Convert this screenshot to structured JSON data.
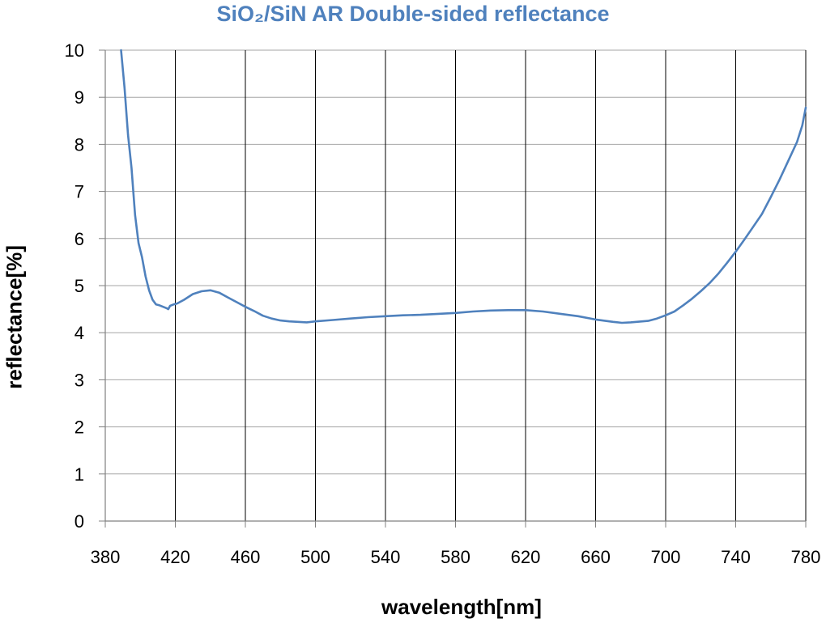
{
  "chart_data": {
    "type": "line",
    "title": "SiO₂/SiN AR Double-sided reflectance",
    "xlabel": "wavelength[nm]",
    "ylabel": "reflectance[%]",
    "xlim": [
      380,
      780
    ],
    "ylim": [
      0,
      10
    ],
    "xticks": [
      380,
      420,
      460,
      500,
      540,
      580,
      620,
      660,
      700,
      740,
      780
    ],
    "yticks": [
      0,
      1,
      2,
      3,
      4,
      5,
      6,
      7,
      8,
      9,
      10
    ],
    "grid": true,
    "legend": "none",
    "series": [
      {
        "color": "#4f81bd",
        "x": [
          389,
          391,
          393,
          395,
          397,
          399,
          401,
          403,
          405,
          407,
          409,
          411,
          413,
          415,
          416,
          417,
          419,
          421,
          425,
          430,
          435,
          440,
          445,
          450,
          455,
          460,
          465,
          470,
          475,
          480,
          485,
          490,
          495,
          500,
          510,
          520,
          530,
          540,
          550,
          560,
          570,
          580,
          590,
          600,
          610,
          620,
          630,
          640,
          650,
          660,
          670,
          675,
          680,
          690,
          695,
          700,
          705,
          710,
          715,
          720,
          725,
          730,
          735,
          740,
          745,
          750,
          755,
          760,
          765,
          770,
          775,
          778,
          780
        ],
        "y": [
          10.0,
          9.2,
          8.2,
          7.5,
          6.5,
          5.9,
          5.6,
          5.2,
          4.9,
          4.7,
          4.6,
          4.58,
          4.55,
          4.52,
          4.5,
          4.57,
          4.6,
          4.62,
          4.7,
          4.82,
          4.88,
          4.9,
          4.85,
          4.75,
          4.65,
          4.55,
          4.46,
          4.36,
          4.3,
          4.26,
          4.24,
          4.23,
          4.22,
          4.24,
          4.27,
          4.3,
          4.33,
          4.35,
          4.37,
          4.38,
          4.4,
          4.42,
          4.45,
          4.47,
          4.48,
          4.48,
          4.45,
          4.4,
          4.35,
          4.28,
          4.23,
          4.21,
          4.22,
          4.25,
          4.3,
          4.37,
          4.45,
          4.58,
          4.72,
          4.88,
          5.05,
          5.25,
          5.48,
          5.72,
          5.98,
          6.25,
          6.52,
          6.88,
          7.25,
          7.65,
          8.05,
          8.4,
          8.78
        ]
      }
    ]
  }
}
